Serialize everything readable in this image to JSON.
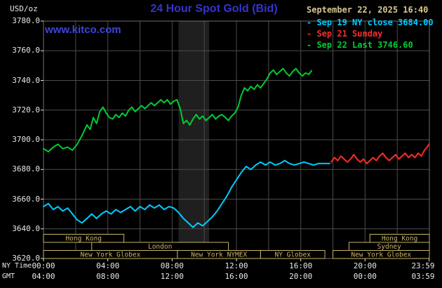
{
  "header": {
    "units_label": "USD/oz",
    "title": "24 Hour Spot Gold (Bid)",
    "datetime": "September 22, 2025 16:40",
    "website": "www.kitco.com",
    "legend": [
      {
        "dash": "-",
        "label": "Sep 19 NY close 3684.00",
        "color": "#00ccff"
      },
      {
        "dash": "-",
        "label": "Sep 21 Sunday",
        "color": "#ff2a2a"
      },
      {
        "dash": "-",
        "label": "Sep 22 Last 3746.60",
        "color": "#00cc33"
      }
    ]
  },
  "axes": {
    "y_tick_labels": [
      "3780.0",
      "3760.0",
      "3740.0",
      "3720.0",
      "3700.0",
      "3680.0",
      "3660.0",
      "3640.0",
      "3620.0"
    ],
    "x_rows": [
      {
        "name": "NY Time",
        "ticks": [
          "00:00",
          "04:00",
          "08:00",
          "12:00",
          "16:00",
          "20:00",
          "23:59"
        ]
      },
      {
        "name": "GMT",
        "ticks": [
          "04:00",
          "08:00",
          "12:00",
          "16:00",
          "20:00",
          "00:00",
          "03:59"
        ]
      }
    ]
  },
  "colors": {
    "background": "#000000",
    "grid": "#4c4c4c",
    "border": "#6e6e6e",
    "band": "#1f1f1f",
    "axis_text": "#e8e8e8",
    "session": "#c8b465"
  },
  "chart_data": {
    "type": "line",
    "title": "24 Hour Spot Gold (Bid)",
    "ylabel": "USD/oz",
    "x_unit": "hour of day, NY time",
    "xlim": [
      0,
      24
    ],
    "ylim": [
      3620,
      3780
    ],
    "y_grid_step": 20,
    "x_grid_step": 2,
    "x_tick_hours": [
      0,
      4,
      8,
      12,
      16,
      20,
      23.983
    ],
    "band": {
      "start": 8.4,
      "end": 10.3
    },
    "sessions": [
      {
        "row": 0,
        "label": "Hong Kong",
        "start": 0,
        "end": 5
      },
      {
        "row": 0,
        "label": "Hong Kong",
        "start": 20.3,
        "end": 24
      },
      {
        "row": 1,
        "label": "London",
        "start": 3,
        "end": 11.5
      },
      {
        "row": 1,
        "label": "Sydney",
        "start": 19,
        "end": 24
      },
      {
        "row": 2,
        "label": "New York Globex",
        "start": 0,
        "end": 8.33
      },
      {
        "row": 2,
        "label": "New York NYMEX",
        "start": 8.33,
        "end": 13.5
      },
      {
        "row": 2,
        "label": "NY Globex",
        "start": 13.5,
        "end": 17.5
      },
      {
        "row": 2,
        "label": "New York Globex",
        "start": 18,
        "end": 24
      }
    ],
    "series": [
      {
        "id": "sep19",
        "name": "Sep 19 NY close",
        "close": 3684.0,
        "color": "#00ccff",
        "points": [
          [
            0,
            3655
          ],
          [
            0.3,
            3657
          ],
          [
            0.6,
            3653
          ],
          [
            0.9,
            3655
          ],
          [
            1.2,
            3652
          ],
          [
            1.5,
            3654
          ],
          [
            1.8,
            3650
          ],
          [
            2.1,
            3646
          ],
          [
            2.4,
            3644
          ],
          [
            2.7,
            3647
          ],
          [
            3,
            3650
          ],
          [
            3.3,
            3647
          ],
          [
            3.6,
            3650
          ],
          [
            3.9,
            3652
          ],
          [
            4.2,
            3650
          ],
          [
            4.5,
            3653
          ],
          [
            4.8,
            3651
          ],
          [
            5.1,
            3653
          ],
          [
            5.4,
            3655
          ],
          [
            5.7,
            3652
          ],
          [
            6,
            3655
          ],
          [
            6.3,
            3653
          ],
          [
            6.6,
            3656
          ],
          [
            6.9,
            3654
          ],
          [
            7.2,
            3656
          ],
          [
            7.5,
            3653
          ],
          [
            7.8,
            3655
          ],
          [
            8.1,
            3654
          ],
          [
            8.4,
            3651
          ],
          [
            8.7,
            3647
          ],
          [
            9,
            3644
          ],
          [
            9.3,
            3641
          ],
          [
            9.6,
            3644
          ],
          [
            9.9,
            3642
          ],
          [
            10.2,
            3645
          ],
          [
            10.5,
            3648
          ],
          [
            10.8,
            3652
          ],
          [
            11.1,
            3657
          ],
          [
            11.4,
            3662
          ],
          [
            11.7,
            3668
          ],
          [
            12,
            3673
          ],
          [
            12.3,
            3678
          ],
          [
            12.6,
            3682
          ],
          [
            12.9,
            3680
          ],
          [
            13.2,
            3683
          ],
          [
            13.5,
            3685
          ],
          [
            13.8,
            3683
          ],
          [
            14.1,
            3685
          ],
          [
            14.4,
            3683
          ],
          [
            14.7,
            3684
          ],
          [
            15,
            3686
          ],
          [
            15.3,
            3684
          ],
          [
            15.6,
            3683
          ],
          [
            15.9,
            3684
          ],
          [
            16.2,
            3685
          ],
          [
            16.5,
            3684
          ],
          [
            16.8,
            3683
          ],
          [
            17.1,
            3684
          ],
          [
            17.4,
            3684
          ],
          [
            17.8,
            3684
          ]
        ]
      },
      {
        "id": "sep21",
        "name": "Sep 21 Sunday",
        "color": "#ff2a2a",
        "points": [
          [
            17.9,
            3685
          ],
          [
            18.1,
            3688
          ],
          [
            18.3,
            3686
          ],
          [
            18.5,
            3689
          ],
          [
            18.7,
            3687
          ],
          [
            18.9,
            3685
          ],
          [
            19.1,
            3687
          ],
          [
            19.3,
            3690
          ],
          [
            19.5,
            3687
          ],
          [
            19.7,
            3685
          ],
          [
            19.9,
            3687
          ],
          [
            20.1,
            3684
          ],
          [
            20.3,
            3686
          ],
          [
            20.5,
            3688
          ],
          [
            20.7,
            3686
          ],
          [
            20.9,
            3689
          ],
          [
            21.1,
            3691
          ],
          [
            21.3,
            3688
          ],
          [
            21.5,
            3686
          ],
          [
            21.7,
            3688
          ],
          [
            21.9,
            3690
          ],
          [
            22.1,
            3687
          ],
          [
            22.3,
            3689
          ],
          [
            22.5,
            3691
          ],
          [
            22.7,
            3688
          ],
          [
            22.9,
            3690
          ],
          [
            23.1,
            3688
          ],
          [
            23.3,
            3691
          ],
          [
            23.5,
            3689
          ],
          [
            23.7,
            3693
          ],
          [
            23.85,
            3695
          ],
          [
            23.98,
            3697
          ]
        ]
      },
      {
        "id": "sep22",
        "name": "Sep 22 Last",
        "last": 3746.6,
        "color": "#00cc33",
        "points": [
          [
            0,
            3694
          ],
          [
            0.3,
            3692
          ],
          [
            0.6,
            3695
          ],
          [
            0.9,
            3697
          ],
          [
            1.2,
            3694
          ],
          [
            1.5,
            3695
          ],
          [
            1.8,
            3693
          ],
          [
            2.1,
            3697
          ],
          [
            2.4,
            3703
          ],
          [
            2.7,
            3710
          ],
          [
            2.9,
            3707
          ],
          [
            3.1,
            3715
          ],
          [
            3.3,
            3711
          ],
          [
            3.5,
            3719
          ],
          [
            3.7,
            3722
          ],
          [
            3.9,
            3718
          ],
          [
            4.1,
            3715
          ],
          [
            4.3,
            3714
          ],
          [
            4.5,
            3717
          ],
          [
            4.7,
            3715
          ],
          [
            4.9,
            3718
          ],
          [
            5.1,
            3716
          ],
          [
            5.3,
            3720
          ],
          [
            5.5,
            3722
          ],
          [
            5.7,
            3719
          ],
          [
            5.9,
            3721
          ],
          [
            6.1,
            3723
          ],
          [
            6.3,
            3721
          ],
          [
            6.5,
            3723
          ],
          [
            6.7,
            3725
          ],
          [
            6.9,
            3723
          ],
          [
            7.1,
            3725
          ],
          [
            7.3,
            3727
          ],
          [
            7.5,
            3725
          ],
          [
            7.7,
            3727
          ],
          [
            7.9,
            3724
          ],
          [
            8.1,
            3726
          ],
          [
            8.3,
            3727
          ],
          [
            8.5,
            3721
          ],
          [
            8.7,
            3711
          ],
          [
            8.9,
            3713
          ],
          [
            9.1,
            3710
          ],
          [
            9.3,
            3714
          ],
          [
            9.5,
            3717
          ],
          [
            9.7,
            3714
          ],
          [
            9.9,
            3716
          ],
          [
            10.1,
            3713
          ],
          [
            10.3,
            3715
          ],
          [
            10.5,
            3717
          ],
          [
            10.7,
            3714
          ],
          [
            10.9,
            3716
          ],
          [
            11.1,
            3717
          ],
          [
            11.3,
            3715
          ],
          [
            11.5,
            3713
          ],
          [
            11.7,
            3716
          ],
          [
            11.9,
            3718
          ],
          [
            12.1,
            3722
          ],
          [
            12.3,
            3730
          ],
          [
            12.5,
            3735
          ],
          [
            12.7,
            3733
          ],
          [
            12.9,
            3736
          ],
          [
            13.1,
            3734
          ],
          [
            13.3,
            3737
          ],
          [
            13.5,
            3735
          ],
          [
            13.7,
            3738
          ],
          [
            13.9,
            3741
          ],
          [
            14.1,
            3745
          ],
          [
            14.3,
            3747
          ],
          [
            14.5,
            3744
          ],
          [
            14.7,
            3746
          ],
          [
            14.9,
            3748
          ],
          [
            15.1,
            3745
          ],
          [
            15.3,
            3743
          ],
          [
            15.5,
            3746
          ],
          [
            15.7,
            3748
          ],
          [
            15.9,
            3745
          ],
          [
            16.1,
            3743
          ],
          [
            16.3,
            3745
          ],
          [
            16.5,
            3744
          ],
          [
            16.67,
            3746.6
          ]
        ]
      }
    ]
  }
}
